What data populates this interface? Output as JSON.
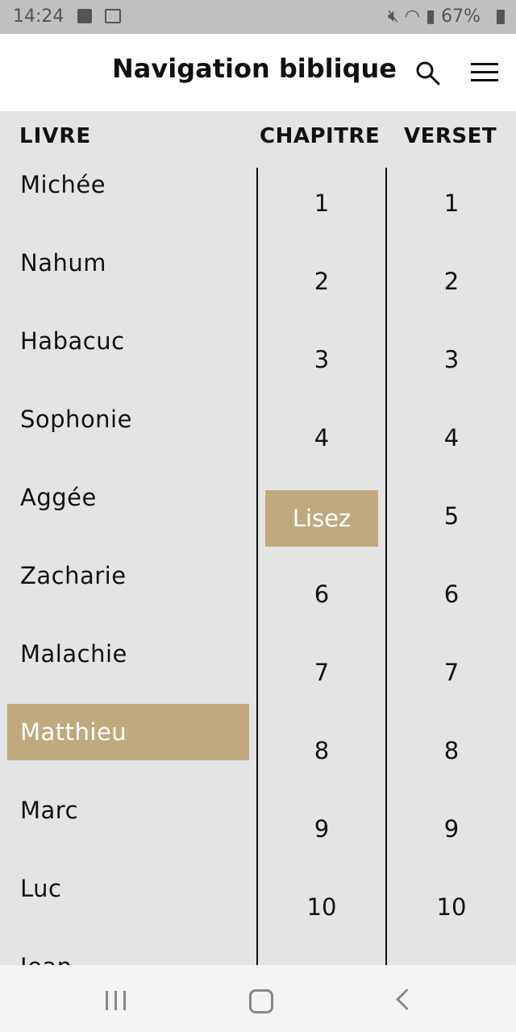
{
  "status_bar": {
    "time": "14:24",
    "battery": "67%",
    "icons": [
      "image-icon",
      "gmail-icon",
      "mute-icon",
      "wifi-icon",
      "signal-icon",
      "battery-icon"
    ]
  },
  "header": {
    "title": "Navigation biblique",
    "icons": [
      "search-icon",
      "menu-icon"
    ]
  },
  "columns": {
    "book": "LIVRE",
    "chapter": "CHAPITRE",
    "verse": "VERSET"
  },
  "books": [
    "Michée",
    "Nahum",
    "Habacuc",
    "Sophonie",
    "Aggée",
    "Zacharie",
    "Malachie",
    "Matthieu",
    "Marc",
    "Luc",
    "Jean"
  ],
  "selected_book": "Matthieu",
  "chapters": [
    "1",
    "2",
    "3",
    "4",
    "Lisez",
    "6",
    "7",
    "8",
    "9",
    "10"
  ],
  "read_button_label": "Lisez",
  "verses": [
    "1",
    "2",
    "3",
    "4",
    "5",
    "6",
    "7",
    "8",
    "9",
    "10"
  ],
  "colors": {
    "accent": "#c1a97f",
    "background": "#e4e4e4",
    "status_bar": "#c0c0c0"
  },
  "nav_bar": {
    "icons": [
      "recent-apps-icon",
      "home-icon",
      "back-icon"
    ]
  }
}
